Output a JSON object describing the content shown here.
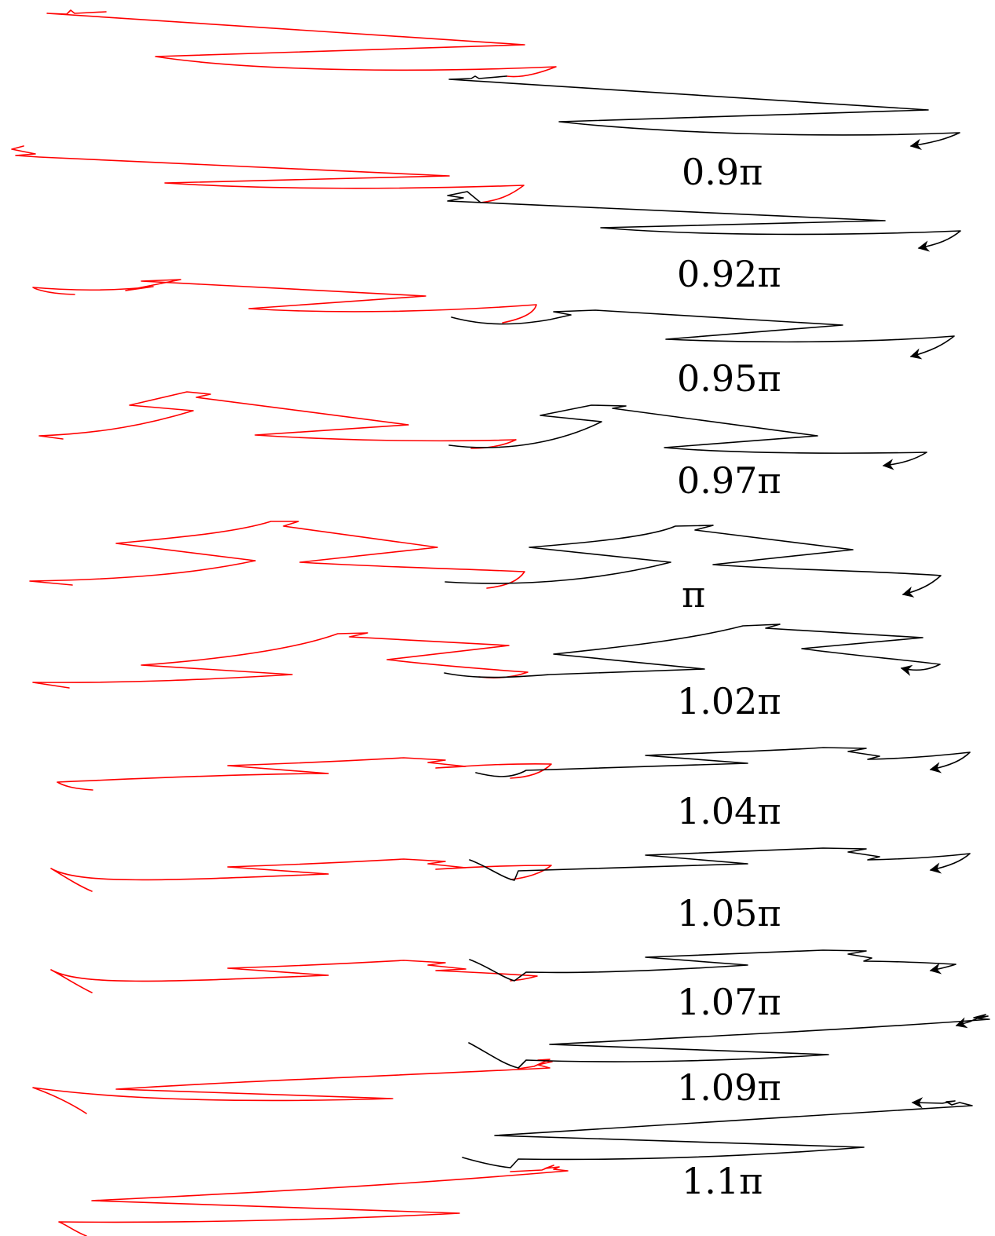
{
  "figure": {
    "colors": {
      "red_curve": "#ff0000",
      "black_curve": "#000000",
      "background": "#ffffff"
    },
    "panels": [
      {
        "label": "0.9π"
      },
      {
        "label": "0.92π"
      },
      {
        "label": "0.95π"
      },
      {
        "label": "0.97π"
      },
      {
        "label": "π"
      },
      {
        "label": "1.02π"
      },
      {
        "label": "1.04π"
      },
      {
        "label": "1.05π"
      },
      {
        "label": "1.07π"
      },
      {
        "label": "1.09π"
      },
      {
        "label": "1.1π"
      }
    ]
  }
}
